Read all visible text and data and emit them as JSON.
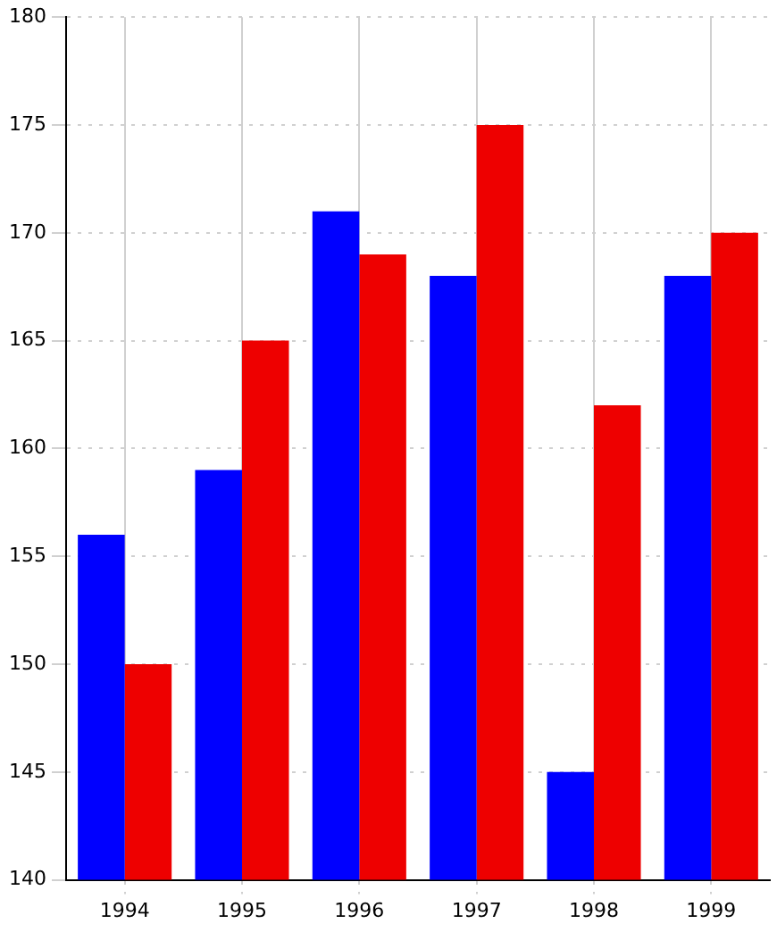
{
  "chart_data": {
    "type": "bar",
    "categories": [
      "1994",
      "1995",
      "1996",
      "1997",
      "1998",
      "1999"
    ],
    "series": [
      {
        "color": "#0000ff",
        "values": [
          156,
          159,
          171,
          168,
          145,
          168
        ]
      },
      {
        "color": "#ee0000",
        "values": [
          150,
          165,
          169,
          175,
          162,
          170
        ]
      }
    ],
    "ylim": [
      140,
      180
    ],
    "yticks": [
      140,
      145,
      150,
      155,
      160,
      165,
      170,
      175,
      180
    ],
    "grid": true,
    "legend": false
  }
}
